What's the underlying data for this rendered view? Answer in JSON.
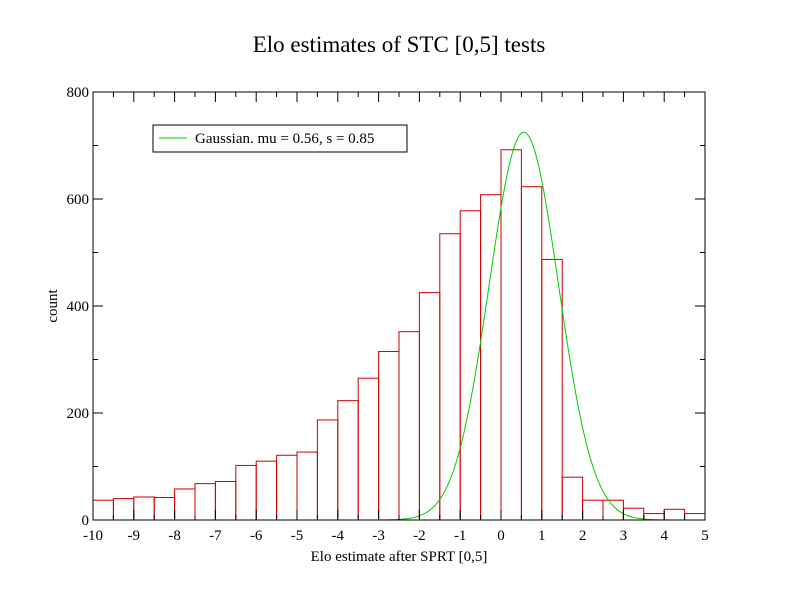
{
  "chart_data": {
    "type": "bar",
    "title": "Elo estimates of STC [0,5] tests",
    "xlabel": "Elo estimate after SPRT [0,5]",
    "ylabel": "count",
    "xlim": [
      -10,
      5
    ],
    "ylim": [
      0,
      800
    ],
    "x_ticks": [
      "-10",
      "-9",
      "-8",
      "-7",
      "-6",
      "-5",
      "-4",
      "-3",
      "-2",
      "-1",
      "0",
      "1",
      "2",
      "3",
      "4",
      "5"
    ],
    "y_ticks": [
      "0",
      "200",
      "400",
      "600",
      "800"
    ],
    "bin_width": 0.5,
    "bins_start": [
      -10,
      -9.5,
      -9,
      -8.5,
      -8,
      -7.5,
      -7,
      -6.5,
      -6,
      -5.5,
      -5,
      -4.5,
      -4,
      -3.5,
      -3,
      -2.5,
      -2,
      -1.5,
      -1,
      -0.5,
      0,
      0.5,
      1,
      1.5,
      2,
      2.5,
      3,
      3.5,
      4,
      4.5
    ],
    "values": [
      37,
      40,
      43,
      42,
      58,
      68,
      72,
      102,
      110,
      121,
      127,
      187,
      223,
      265,
      315,
      352,
      425,
      535,
      578,
      608,
      692,
      623,
      487,
      80,
      37,
      37,
      22,
      12,
      20,
      12
    ],
    "bar_color": "#cc0000",
    "series": [
      {
        "name": "Gaussian. mu = 0.56, s = 0.85",
        "type": "line",
        "mu": 0.56,
        "s": 0.85,
        "amplitude": 725,
        "color": "#00cc00"
      }
    ],
    "legend_position": "top-left",
    "grid": false
  }
}
